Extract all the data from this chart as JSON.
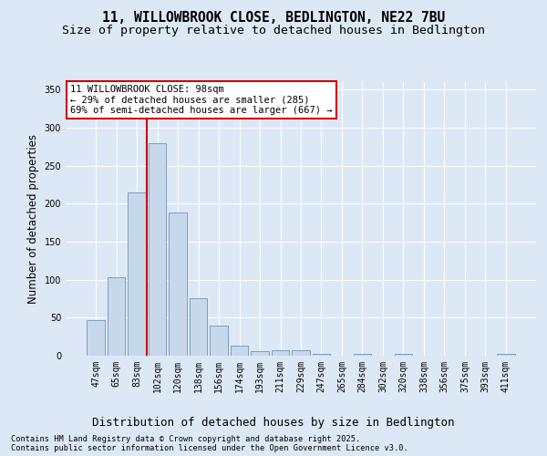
{
  "title1": "11, WILLOWBROOK CLOSE, BEDLINGTON, NE22 7BU",
  "title2": "Size of property relative to detached houses in Bedlington",
  "xlabel": "Distribution of detached houses by size in Bedlington",
  "ylabel": "Number of detached properties",
  "categories": [
    "47sqm",
    "65sqm",
    "83sqm",
    "102sqm",
    "120sqm",
    "138sqm",
    "156sqm",
    "174sqm",
    "193sqm",
    "211sqm",
    "229sqm",
    "247sqm",
    "265sqm",
    "284sqm",
    "302sqm",
    "320sqm",
    "338sqm",
    "356sqm",
    "375sqm",
    "393sqm",
    "411sqm"
  ],
  "values": [
    47,
    103,
    215,
    280,
    188,
    76,
    40,
    13,
    6,
    7,
    7,
    3,
    0,
    2,
    0,
    3,
    0,
    0,
    0,
    0,
    2
  ],
  "bar_color": "#c8d8eb",
  "bar_edge_color": "#7a9fc0",
  "property_sqm": "98sqm",
  "annotation_text1": "11 WILLOWBROOK CLOSE: 98sqm",
  "annotation_text2": "← 29% of detached houses are smaller (285)",
  "annotation_text3": "69% of semi-detached houses are larger (667) →",
  "annotation_box_color": "#ffffff",
  "annotation_box_edge_color": "#cc0000",
  "ylim": [
    0,
    360
  ],
  "yticks": [
    0,
    50,
    100,
    150,
    200,
    250,
    300,
    350
  ],
  "footer1": "Contains HM Land Registry data © Crown copyright and database right 2025.",
  "footer2": "Contains public sector information licensed under the Open Government Licence v3.0.",
  "bg_color": "#dce8f5",
  "plot_bg_color": "#dce8f5",
  "grid_color": "#ffffff",
  "title1_fontsize": 10.5,
  "title2_fontsize": 9.5,
  "xlabel_fontsize": 9,
  "ylabel_fontsize": 8.5,
  "tick_fontsize": 7,
  "property_line_color": "#cc0000",
  "property_line_bar_idx": 3
}
